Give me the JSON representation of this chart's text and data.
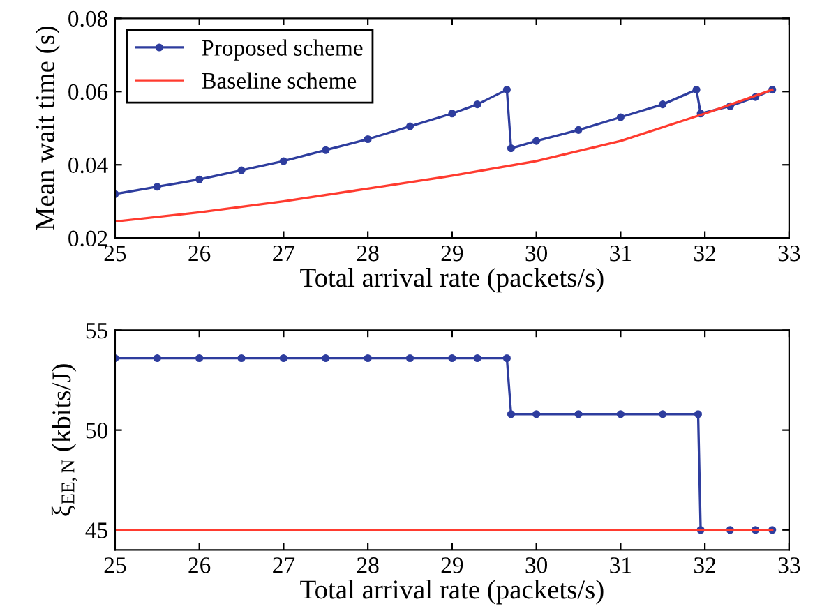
{
  "chart_data": [
    {
      "type": "line",
      "xlabel": "Total arrival rate (packets/s)",
      "ylabel": "Mean wait time (s)",
      "xlim": [
        25,
        33
      ],
      "xticks": [
        25,
        26,
        27,
        28,
        29,
        30,
        31,
        32,
        33
      ],
      "ylim": [
        0.02,
        0.08
      ],
      "yticks": [
        0.02,
        0.04,
        0.06,
        0.08
      ],
      "grid": false,
      "legend": "top left",
      "series": [
        {
          "name": "Proposed scheme",
          "color": "#2e3d9e",
          "marker": "circle",
          "x": [
            25,
            25.5,
            26,
            26.5,
            27,
            27.5,
            28,
            28.5,
            29,
            29.3,
            29.65,
            29.7,
            30,
            30.5,
            31,
            31.5,
            31.9,
            31.95,
            32.3,
            32.6,
            32.8
          ],
          "values": [
            0.032,
            0.034,
            0.036,
            0.0385,
            0.041,
            0.044,
            0.047,
            0.0505,
            0.054,
            0.0565,
            0.0605,
            0.0445,
            0.0465,
            0.0495,
            0.053,
            0.0565,
            0.0605,
            0.054,
            0.056,
            0.0585,
            0.0605
          ]
        },
        {
          "name": "Baseline scheme",
          "color": "#ff3b2f",
          "marker": "none",
          "x": [
            25,
            26,
            27,
            28,
            29,
            30,
            31,
            32,
            32.8
          ],
          "values": [
            0.0245,
            0.027,
            0.03,
            0.0335,
            0.037,
            0.041,
            0.0465,
            0.054,
            0.0605
          ]
        }
      ]
    },
    {
      "type": "line",
      "xlabel": "Total arrival rate (packets/s)",
      "ylabel": "ξ$_{EE,N}$ (kbits/J)",
      "xlim": [
        25,
        33
      ],
      "xticks": [
        25,
        26,
        27,
        28,
        29,
        30,
        31,
        32,
        33
      ],
      "ylim": [
        44,
        55
      ],
      "yticks": [
        45,
        50,
        55
      ],
      "grid": false,
      "legend": false,
      "series": [
        {
          "color": "#2e3d9e",
          "marker": "circle",
          "x": [
            25,
            25.5,
            26,
            26.5,
            27,
            27.5,
            28,
            28.5,
            29,
            29.3,
            29.65,
            29.7,
            30,
            30.5,
            31,
            31.5,
            31.92,
            31.95,
            32.3,
            32.6,
            32.8
          ],
          "values": [
            53.6,
            53.6,
            53.6,
            53.6,
            53.6,
            53.6,
            53.6,
            53.6,
            53.6,
            53.6,
            53.6,
            50.8,
            50.8,
            50.8,
            50.8,
            50.8,
            50.8,
            45,
            45,
            45,
            45
          ]
        },
        {
          "color": "#ff3b2f",
          "marker": "none",
          "x": [
            25,
            32.8
          ],
          "values": [
            45,
            45
          ]
        }
      ]
    }
  ]
}
